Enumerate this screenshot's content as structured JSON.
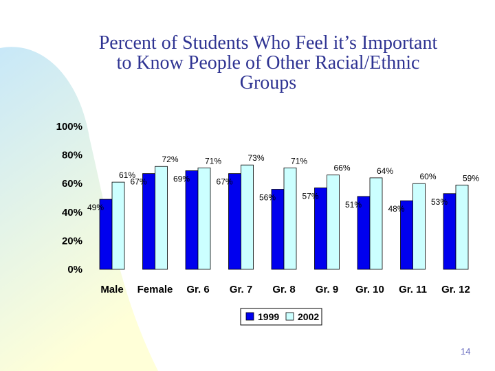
{
  "slide": {
    "title_lines": [
      "Percent of Students Who Feel it’s Important",
      "to Know People of Other Racial/Ethnic",
      "Groups"
    ],
    "page_number": "14"
  },
  "colors": {
    "series_1999": "#0000ee",
    "series_2002": "#ccffff",
    "title": "#2e3392",
    "background_gradient_top": "#c8e8f8",
    "background_gradient_bottom": "#ffffd8"
  },
  "chart_data": {
    "type": "bar",
    "categories": [
      "Male",
      "Female",
      "Gr. 6",
      "Gr. 7",
      "Gr. 8",
      "Gr. 9",
      "Gr. 10",
      "Gr. 11",
      "Gr. 12"
    ],
    "series": [
      {
        "name": "1999",
        "values": [
          49,
          67,
          69,
          67,
          56,
          57,
          51,
          48,
          53
        ],
        "labels": [
          "49%",
          "67%",
          "69%",
          "67%",
          "56%",
          "57%",
          "51%",
          "48%",
          "53%"
        ]
      },
      {
        "name": "2002",
        "values": [
          61,
          72,
          71,
          73,
          71,
          66,
          64,
          60,
          59
        ],
        "labels": [
          "61%",
          "72%",
          "71%",
          "73%",
          "71%",
          "66%",
          "64%",
          "60%",
          "59%"
        ]
      }
    ],
    "ylim": [
      0,
      100
    ],
    "yticks": [
      "0%",
      "20%",
      "40%",
      "60%",
      "80%",
      "100%"
    ],
    "ytick_values": [
      0,
      20,
      40,
      60,
      80,
      100
    ],
    "grid": false,
    "legend_position": "bottom"
  }
}
